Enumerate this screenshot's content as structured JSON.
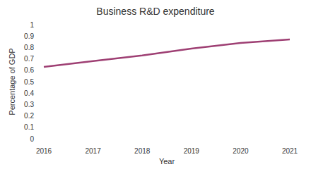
{
  "chart_data": {
    "type": "line",
    "title": "Business R&D expenditure",
    "x_label": "Year",
    "y_label": "Percentage of GDP",
    "categories": [
      "2016",
      "2017",
      "2018",
      "2019",
      "2020",
      "2021"
    ],
    "values": [
      0.63,
      0.68,
      0.73,
      0.79,
      0.84,
      0.87
    ],
    "color": "#9e3f73",
    "ylim": [
      0,
      1
    ],
    "yticks": [
      0,
      0.1,
      0.2,
      0.3,
      0.4,
      0.5,
      0.6,
      0.7,
      0.8,
      0.9,
      1
    ],
    "grid": false
  }
}
